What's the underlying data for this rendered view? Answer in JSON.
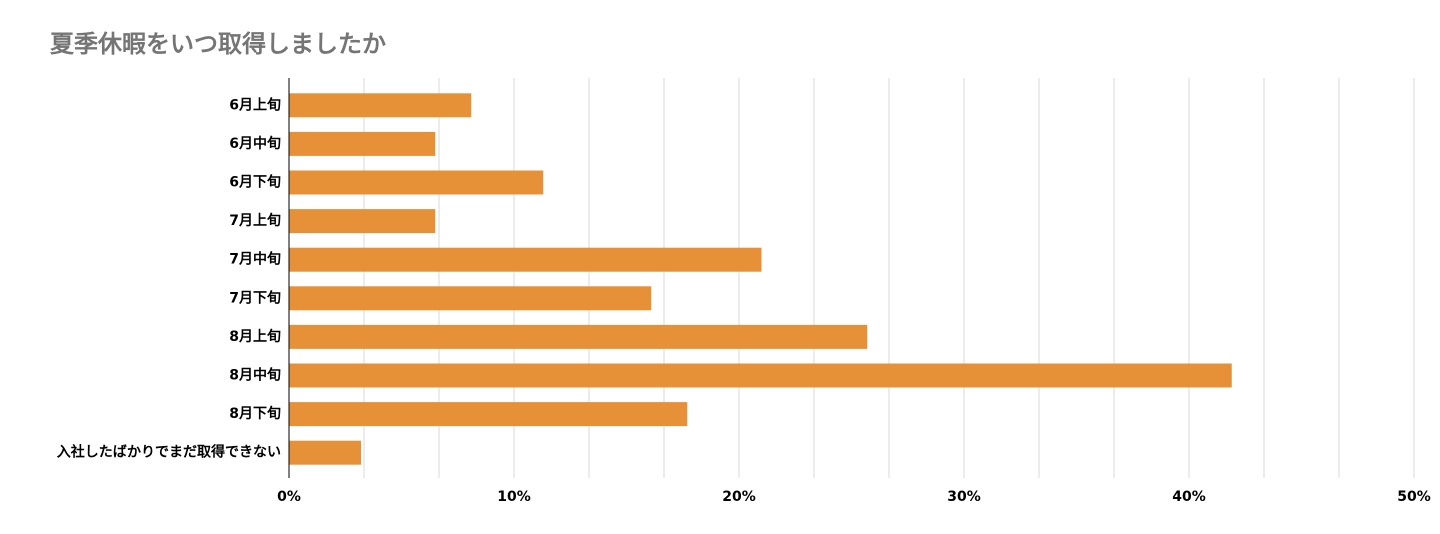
{
  "chart_data": {
    "type": "hbar",
    "title": "夏季休暇をいつ取得しましたか",
    "categories": [
      "6月上旬",
      "6月中旬",
      "6月下旬",
      "7月上旬",
      "7月中旬",
      "7月下旬",
      "8月上旬",
      "8月中旬",
      "8月下旬",
      "入社したばかりでまだ取得できない"
    ],
    "values": [
      8.1,
      6.5,
      11.3,
      6.5,
      21.0,
      16.1,
      25.7,
      41.9,
      17.7,
      3.2
    ],
    "color": "#e69138",
    "xlim": [
      0,
      50
    ],
    "xticks": [
      {
        "value": 0,
        "label": "0%"
      },
      {
        "value": 10,
        "label": "10%"
      },
      {
        "value": 20,
        "label": "20%"
      },
      {
        "value": 30,
        "label": "30%"
      },
      {
        "value": 40,
        "label": "40%"
      },
      {
        "value": 50,
        "label": "50%"
      }
    ],
    "grid": true,
    "minor_grid_divisions": 3
  }
}
